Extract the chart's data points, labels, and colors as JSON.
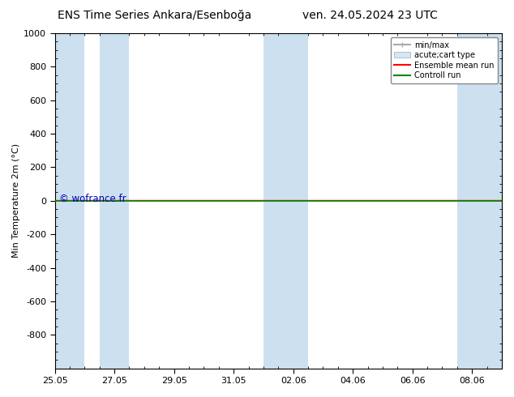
{
  "title_left": "ENS Time Series Ankara/Esenboğa",
  "title_right": "ven. 24.05.2024 23 UTC",
  "ylabel": "Min Temperature 2m (°C)",
  "ylim_top": -1000,
  "ylim_bottom": 1000,
  "yticks": [
    -800,
    -600,
    -400,
    -200,
    0,
    200,
    400,
    600,
    800,
    1000
  ],
  "xtick_labels": [
    "25.05",
    "27.05",
    "29.05",
    "31.05",
    "02.06",
    "04.06",
    "06.06",
    "08.06"
  ],
  "xtick_positions": [
    0,
    2,
    4,
    6,
    8,
    10,
    12,
    14
  ],
  "xlim": [
    0,
    15.0
  ],
  "background_color": "#ffffff",
  "plot_bg_color": "#ffffff",
  "band_color": "#cce0f0",
  "bands": [
    [
      0,
      1
    ],
    [
      1.5,
      2.5
    ],
    [
      7.0,
      8.5
    ],
    [
      13.5,
      15.0
    ]
  ],
  "control_run_color": "#008800",
  "ensemble_mean_color": "#ff0000",
  "watermark": "© wofrance.fr",
  "watermark_color": "#0000bb",
  "legend_labels": [
    "min/max",
    "acute;cart type",
    "Ensemble mean run",
    "Controll run"
  ],
  "title_fontsize": 10,
  "ylabel_fontsize": 8,
  "tick_fontsize": 8
}
